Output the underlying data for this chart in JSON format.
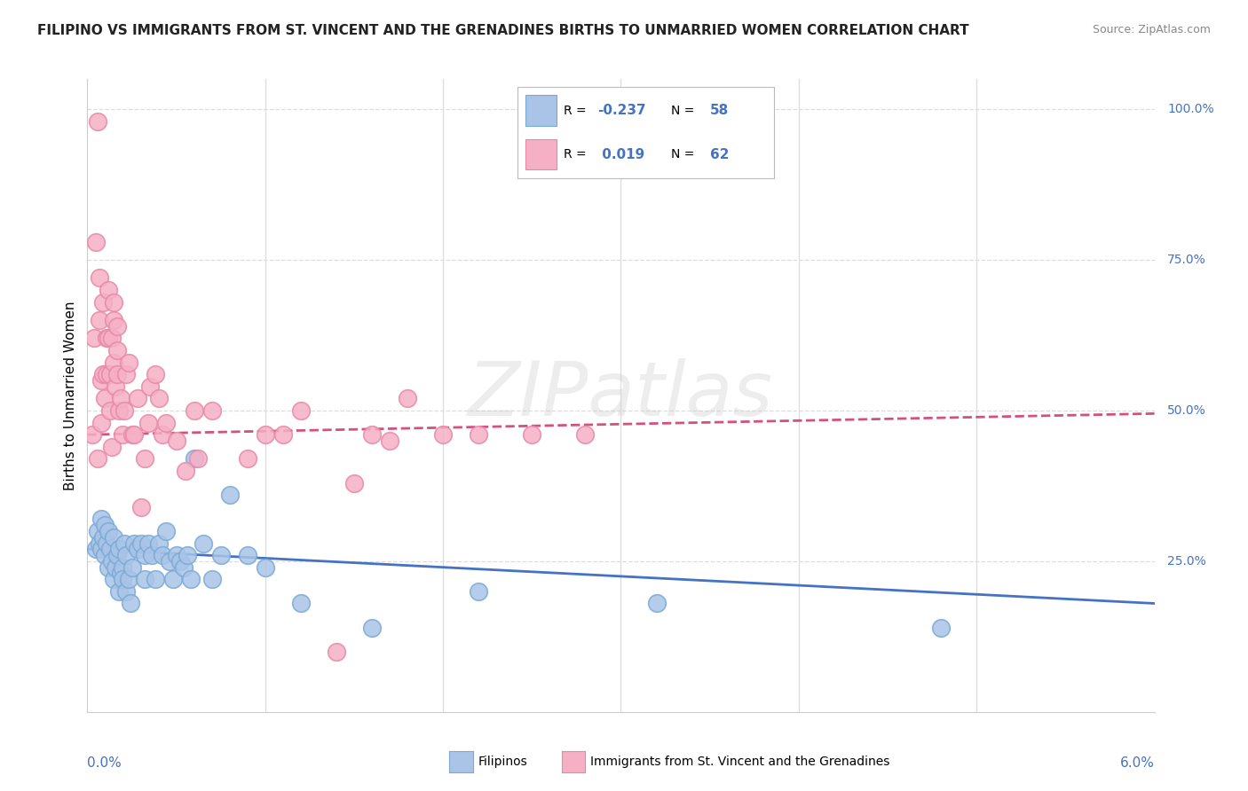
{
  "title": "FILIPINO VS IMMIGRANTS FROM ST. VINCENT AND THE GRENADINES BIRTHS TO UNMARRIED WOMEN CORRELATION CHART",
  "source": "Source: ZipAtlas.com",
  "ylabel": "Births to Unmarried Women",
  "blue_color": "#aac4e8",
  "pink_color": "#f5b0c5",
  "blue_edge_color": "#7aaad4",
  "pink_edge_color": "#e888a8",
  "blue_line_color": "#4472c4",
  "pink_line_color": "#d45080",
  "legend_filipino_R": "-0.237",
  "legend_filipino_N": "58",
  "legend_svg_R": "0.019",
  "legend_svg_N": "62",
  "filipino_points": [
    [
      0.05,
      27
    ],
    [
      0.06,
      30
    ],
    [
      0.07,
      28
    ],
    [
      0.08,
      32
    ],
    [
      0.08,
      27
    ],
    [
      0.09,
      29
    ],
    [
      0.1,
      31
    ],
    [
      0.1,
      26
    ],
    [
      0.11,
      28
    ],
    [
      0.12,
      30
    ],
    [
      0.12,
      24
    ],
    [
      0.13,
      27
    ],
    [
      0.14,
      25
    ],
    [
      0.15,
      29
    ],
    [
      0.15,
      22
    ],
    [
      0.16,
      24
    ],
    [
      0.17,
      26
    ],
    [
      0.18,
      20
    ],
    [
      0.18,
      27
    ],
    [
      0.19,
      23
    ],
    [
      0.2,
      24
    ],
    [
      0.2,
      22
    ],
    [
      0.21,
      28
    ],
    [
      0.22,
      20
    ],
    [
      0.22,
      26
    ],
    [
      0.23,
      22
    ],
    [
      0.24,
      18
    ],
    [
      0.25,
      24
    ],
    [
      0.26,
      28
    ],
    [
      0.28,
      27
    ],
    [
      0.3,
      28
    ],
    [
      0.32,
      26
    ],
    [
      0.32,
      22
    ],
    [
      0.34,
      28
    ],
    [
      0.36,
      26
    ],
    [
      0.38,
      22
    ],
    [
      0.4,
      28
    ],
    [
      0.42,
      26
    ],
    [
      0.44,
      30
    ],
    [
      0.46,
      25
    ],
    [
      0.48,
      22
    ],
    [
      0.5,
      26
    ],
    [
      0.52,
      25
    ],
    [
      0.54,
      24
    ],
    [
      0.56,
      26
    ],
    [
      0.58,
      22
    ],
    [
      0.6,
      42
    ],
    [
      0.65,
      28
    ],
    [
      0.7,
      22
    ],
    [
      0.75,
      26
    ],
    [
      0.8,
      36
    ],
    [
      0.9,
      26
    ],
    [
      1.0,
      24
    ],
    [
      1.2,
      18
    ],
    [
      1.6,
      14
    ],
    [
      2.2,
      20
    ],
    [
      3.2,
      18
    ],
    [
      4.8,
      14
    ]
  ],
  "svg_points": [
    [
      0.03,
      46
    ],
    [
      0.04,
      62
    ],
    [
      0.05,
      78
    ],
    [
      0.06,
      98
    ],
    [
      0.06,
      42
    ],
    [
      0.07,
      65
    ],
    [
      0.07,
      72
    ],
    [
      0.08,
      55
    ],
    [
      0.08,
      48
    ],
    [
      0.09,
      68
    ],
    [
      0.09,
      56
    ],
    [
      0.1,
      52
    ],
    [
      0.11,
      62
    ],
    [
      0.11,
      56
    ],
    [
      0.12,
      70
    ],
    [
      0.12,
      62
    ],
    [
      0.13,
      56
    ],
    [
      0.13,
      50
    ],
    [
      0.14,
      44
    ],
    [
      0.14,
      62
    ],
    [
      0.15,
      58
    ],
    [
      0.15,
      65
    ],
    [
      0.15,
      68
    ],
    [
      0.16,
      54
    ],
    [
      0.17,
      56
    ],
    [
      0.17,
      60
    ],
    [
      0.17,
      64
    ],
    [
      0.18,
      50
    ],
    [
      0.19,
      52
    ],
    [
      0.2,
      46
    ],
    [
      0.21,
      50
    ],
    [
      0.22,
      56
    ],
    [
      0.23,
      58
    ],
    [
      0.25,
      46
    ],
    [
      0.26,
      46
    ],
    [
      0.28,
      52
    ],
    [
      0.3,
      34
    ],
    [
      0.32,
      42
    ],
    [
      0.34,
      48
    ],
    [
      0.35,
      54
    ],
    [
      0.38,
      56
    ],
    [
      0.4,
      52
    ],
    [
      0.42,
      46
    ],
    [
      0.44,
      48
    ],
    [
      0.5,
      45
    ],
    [
      0.55,
      40
    ],
    [
      0.6,
      50
    ],
    [
      0.62,
      42
    ],
    [
      0.7,
      50
    ],
    [
      0.9,
      42
    ],
    [
      1.0,
      46
    ],
    [
      1.1,
      46
    ],
    [
      1.2,
      50
    ],
    [
      1.4,
      10
    ],
    [
      1.5,
      38
    ],
    [
      1.6,
      46
    ],
    [
      1.7,
      45
    ],
    [
      1.8,
      52
    ],
    [
      2.0,
      46
    ],
    [
      2.2,
      46
    ],
    [
      2.5,
      46
    ],
    [
      2.8,
      46
    ]
  ],
  "xlim": [
    0.0,
    6.0
  ],
  "ylim": [
    0.0,
    105.0
  ],
  "background_color": "#ffffff",
  "grid_color": "#dddddd",
  "title_color": "#222222",
  "source_color": "#888888",
  "axis_label_color": "#4472c4",
  "watermark_color": "#cccccc"
}
